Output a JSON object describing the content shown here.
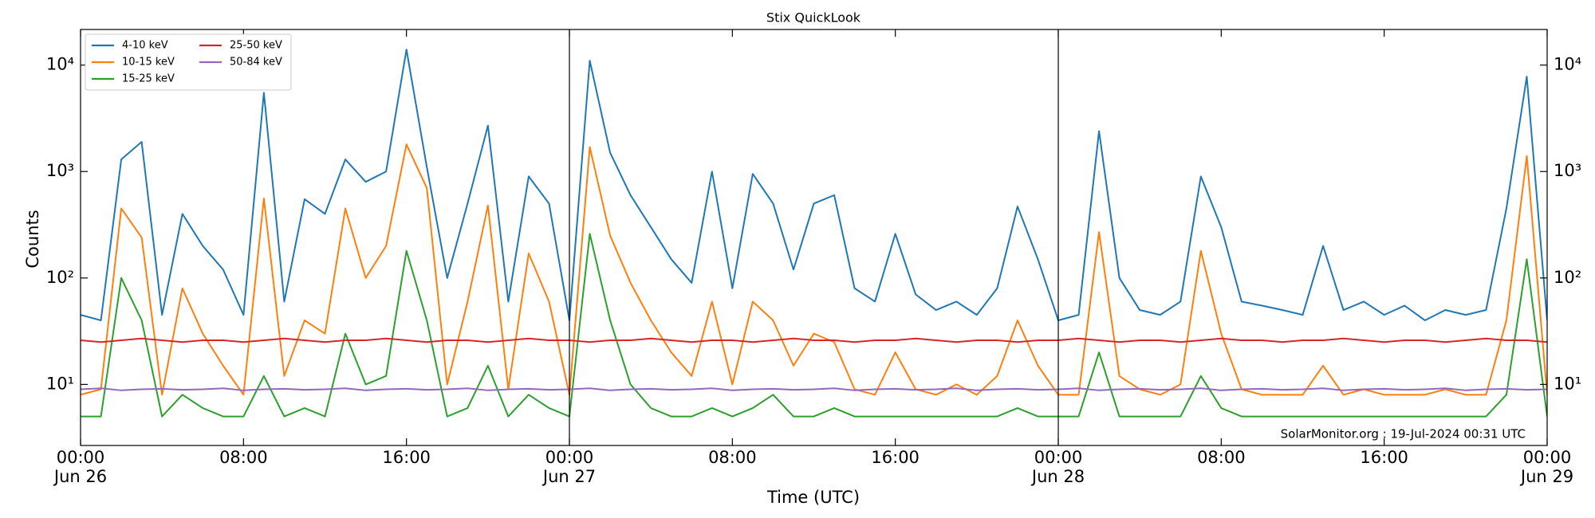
{
  "chart_data": {
    "type": "line",
    "title": "Stix QuickLook",
    "xlabel": "Time (UTC)",
    "ylabel": "Counts",
    "annotation": "SolarMonitor.org : 19-Jul-2024 00:31 UTC",
    "yscale": "log",
    "legend": "upper left",
    "vlines": [
      24,
      48
    ],
    "xlim": [
      0,
      72
    ],
    "xticks": [
      {
        "value": 0,
        "label": "00:00\nJun 26"
      },
      {
        "value": 8,
        "label": "08:00"
      },
      {
        "value": 16,
        "label": "16:00"
      },
      {
        "value": 24,
        "label": "00:00\nJun 27"
      },
      {
        "value": 32,
        "label": "08:00"
      },
      {
        "value": 40,
        "label": "16:00"
      },
      {
        "value": 48,
        "label": "00:00\nJun 28"
      },
      {
        "value": 56,
        "label": "08:00"
      },
      {
        "value": 64,
        "label": "16:00"
      },
      {
        "value": 72,
        "label": "00:00\nJun 29"
      }
    ],
    "ylim": [
      2.67,
      21600
    ],
    "yticks": [
      {
        "value": 10,
        "label": "10¹"
      },
      {
        "value": 100,
        "label": "10²"
      },
      {
        "value": 1000,
        "label": "10³"
      },
      {
        "value": 10000,
        "label": "10⁴"
      }
    ],
    "x": [
      0,
      1,
      2,
      3,
      4,
      5,
      6,
      7,
      8,
      9,
      10,
      11,
      12,
      13,
      14,
      15,
      16,
      17,
      18,
      19,
      20,
      21,
      22,
      23,
      24,
      25,
      26,
      27,
      28,
      29,
      30,
      31,
      32,
      33,
      34,
      35,
      36,
      37,
      38,
      39,
      40,
      41,
      42,
      43,
      44,
      45,
      46,
      47,
      48,
      49,
      50,
      51,
      52,
      53,
      54,
      55,
      56,
      57,
      58,
      59,
      60,
      61,
      62,
      63,
      64,
      65,
      66,
      67,
      68,
      69,
      70,
      71,
      72
    ],
    "series": [
      {
        "name": "4-10 keV",
        "color": "#1f77b4",
        "values": [
          45,
          40,
          1300,
          1900,
          45,
          400,
          200,
          120,
          45,
          5500,
          60,
          550,
          400,
          1300,
          800,
          1000,
          14000,
          1100,
          100,
          500,
          2700,
          60,
          900,
          500,
          40,
          11000,
          1500,
          600,
          300,
          150,
          90,
          1000,
          80,
          950,
          500,
          120,
          500,
          600,
          80,
          60,
          260,
          70,
          50,
          60,
          45,
          80,
          470,
          150,
          40,
          45,
          2400,
          100,
          50,
          45,
          60,
          900,
          300,
          60,
          55,
          50,
          45,
          200,
          50,
          60,
          45,
          55,
          40,
          50,
          45,
          50,
          450,
          7800,
          40
        ]
      },
      {
        "name": "10-15 keV",
        "color": "#ff7f0e",
        "values": [
          8,
          9,
          450,
          240,
          8,
          80,
          30,
          15,
          8,
          560,
          12,
          40,
          30,
          450,
          100,
          200,
          1800,
          700,
          10,
          60,
          480,
          9,
          170,
          60,
          8,
          1700,
          250,
          90,
          40,
          20,
          12,
          60,
          10,
          60,
          40,
          15,
          30,
          25,
          9,
          8,
          20,
          9,
          8,
          10,
          8,
          12,
          40,
          15,
          8,
          8,
          270,
          12,
          9,
          8,
          10,
          180,
          30,
          9,
          8,
          8,
          8,
          15,
          8,
          9,
          8,
          8,
          8,
          9,
          8,
          8,
          40,
          1400,
          8
        ]
      },
      {
        "name": "15-25 keV",
        "color": "#2ca02c",
        "values": [
          5,
          5,
          100,
          40,
          5,
          8,
          6,
          5,
          5,
          12,
          5,
          6,
          5,
          30,
          10,
          12,
          180,
          40,
          5,
          6,
          15,
          5,
          8,
          6,
          5,
          260,
          40,
          10,
          6,
          5,
          5,
          6,
          5,
          6,
          8,
          5,
          5,
          6,
          5,
          5,
          5,
          5,
          5,
          5,
          5,
          5,
          6,
          5,
          5,
          5,
          20,
          5,
          5,
          5,
          5,
          12,
          6,
          5,
          5,
          5,
          5,
          5,
          5,
          5,
          5,
          5,
          5,
          5,
          5,
          5,
          8,
          150,
          5
        ]
      },
      {
        "name": "25-50 keV",
        "color": "#d62728",
        "values": [
          26,
          25,
          26,
          27,
          26,
          25,
          26,
          26,
          25,
          26,
          27,
          26,
          25,
          26,
          26,
          27,
          26,
          25,
          26,
          26,
          25,
          26,
          27,
          26,
          26,
          25,
          26,
          26,
          27,
          26,
          25,
          26,
          26,
          25,
          26,
          27,
          26,
          26,
          25,
          26,
          26,
          27,
          26,
          25,
          26,
          26,
          25,
          26,
          26,
          27,
          26,
          25,
          26,
          26,
          25,
          26,
          27,
          26,
          26,
          25,
          26,
          26,
          27,
          26,
          25,
          26,
          26,
          25,
          26,
          27,
          26,
          26,
          25
        ]
      },
      {
        "name": "50-84 keV",
        "color": "#9467bd",
        "values": [
          9,
          9.2,
          8.8,
          9,
          9.1,
          8.9,
          9,
          9.2,
          8.8,
          9,
          9.1,
          8.9,
          9,
          9.2,
          8.8,
          9,
          9.1,
          8.9,
          9,
          9.2,
          8.8,
          9,
          9.1,
          8.9,
          9,
          9.2,
          8.8,
          9,
          9.1,
          8.9,
          9,
          9.2,
          8.8,
          9,
          9.1,
          8.9,
          9,
          9.2,
          8.8,
          9,
          9.1,
          8.9,
          9,
          9.2,
          8.8,
          9,
          9.1,
          8.9,
          9,
          9.2,
          8.8,
          9,
          9.1,
          8.9,
          9,
          9.2,
          8.8,
          9,
          9.1,
          8.9,
          9,
          9.2,
          8.8,
          9,
          9.1,
          8.9,
          9,
          9.2,
          8.8,
          9,
          9.1,
          8.9,
          9
        ]
      }
    ]
  }
}
